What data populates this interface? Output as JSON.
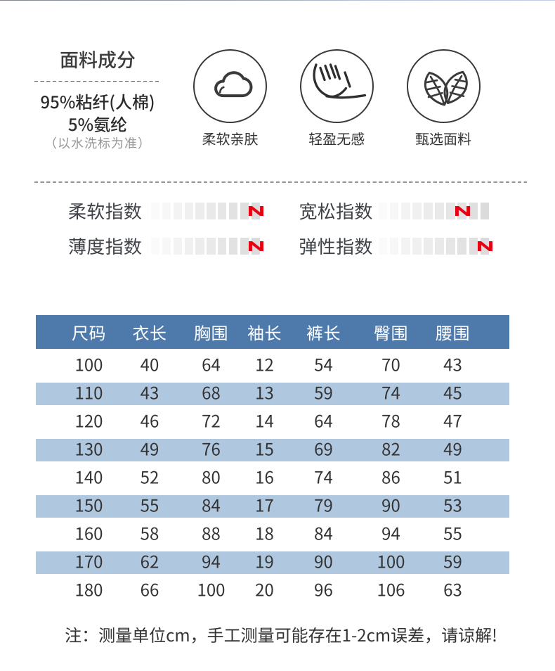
{
  "page": {
    "background": "#ffffff"
  },
  "fabric": {
    "title": "面料成分",
    "composition": [
      "95%粘纤(人棉)",
      "5%氨纶"
    ],
    "note": "（以水洗标为准）",
    "features": [
      {
        "icon": "cloud-icon",
        "label": "柔软亲肤"
      },
      {
        "icon": "feather-icon",
        "label": "轻盈无感"
      },
      {
        "icon": "leaves-icon",
        "label": "甄选面料"
      }
    ]
  },
  "indexes": {
    "marker": "N",
    "marker_color": "#e60012",
    "segments_total": 10,
    "items": [
      {
        "label": "柔软指数",
        "level": 10
      },
      {
        "label": "宽松指数",
        "level": 8
      },
      {
        "label": "薄度指数",
        "level": 10
      },
      {
        "label": "弹性指数",
        "level": 10
      }
    ]
  },
  "size_table": {
    "header_bg": "#4e79ab",
    "stripe_bg": "#b0c7e0",
    "columns": [
      "尺码",
      "衣长",
      "胸围",
      "袖长",
      "裤长",
      "臀围",
      "腰围"
    ],
    "rows": [
      [
        "100",
        "40",
        "64",
        "12",
        "54",
        "70",
        "43"
      ],
      [
        "110",
        "43",
        "68",
        "13",
        "59",
        "74",
        "45"
      ],
      [
        "120",
        "46",
        "72",
        "14",
        "64",
        "78",
        "47"
      ],
      [
        "130",
        "49",
        "76",
        "15",
        "69",
        "82",
        "49"
      ],
      [
        "140",
        "52",
        "80",
        "16",
        "74",
        "86",
        "51"
      ],
      [
        "150",
        "55",
        "84",
        "17",
        "79",
        "90",
        "53"
      ],
      [
        "160",
        "58",
        "88",
        "18",
        "84",
        "94",
        "55"
      ],
      [
        "170",
        "62",
        "94",
        "19",
        "90",
        "100",
        "59"
      ],
      [
        "180",
        "66",
        "100",
        "20",
        "96",
        "106",
        "63"
      ]
    ]
  },
  "note": "注：测量单位cm，手工测量可能存在1-2cm误差，请谅解!"
}
